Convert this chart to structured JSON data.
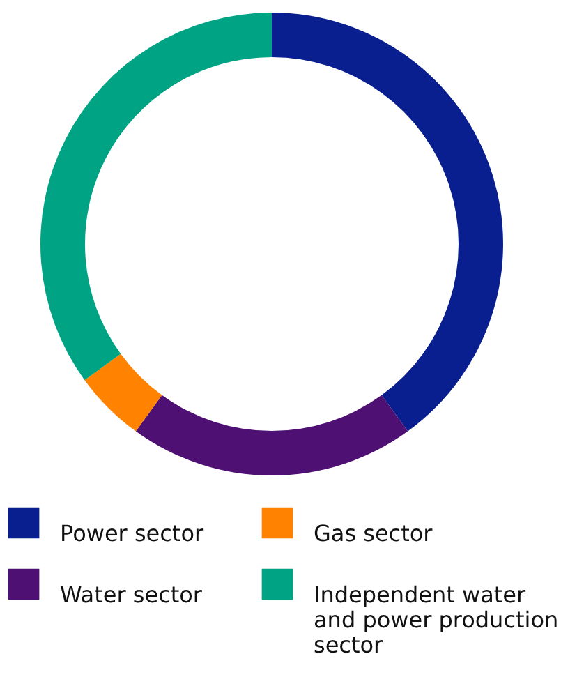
{
  "chart_data": {
    "type": "donut",
    "categories": [
      "Power sector",
      "Water sector",
      "Gas sector",
      "Independent water and power production sector"
    ],
    "values": [
      40,
      20,
      5,
      35
    ],
    "colors": [
      "#0a1f8f",
      "#4f1073",
      "#ff8200",
      "#00a383"
    ],
    "legend": "bottom"
  }
}
